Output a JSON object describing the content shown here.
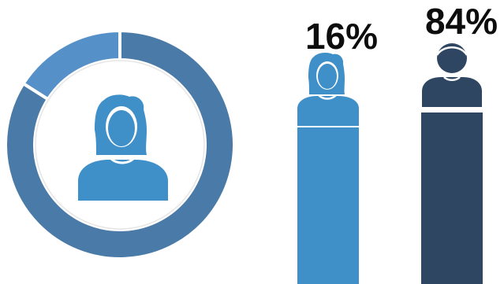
{
  "chart_data": [
    {
      "type": "pie",
      "style": "donut",
      "categories": [
        "female",
        "male"
      ],
      "values": [
        16,
        84
      ],
      "colors": [
        "#5591c8",
        "#4a7aa8"
      ],
      "center_icon": "woman-icon",
      "center_icon_color": "#3f8fc9"
    },
    {
      "type": "bar",
      "categories": [
        "female",
        "male"
      ],
      "values": [
        16,
        84
      ],
      "labels": [
        "16%",
        "84%"
      ],
      "colors": [
        "#3f8fc9",
        "#2f4663"
      ],
      "icons": [
        "woman-icon",
        "man-icon"
      ]
    }
  ]
}
